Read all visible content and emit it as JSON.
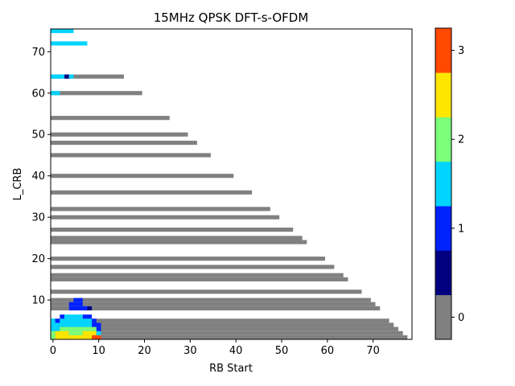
{
  "chart_data": {
    "type": "heatmap",
    "title": "15MHz QPSK DFT-s-OFDM",
    "xlabel": "RB Start",
    "ylabel": "L_CRB",
    "xlim": [
      -0.5,
      78.5
    ],
    "ylim": [
      0.5,
      75.5
    ],
    "x_ticks": [
      0,
      10,
      20,
      30,
      40,
      50,
      60,
      70
    ],
    "y_ticks": [
      10,
      20,
      30,
      40,
      50,
      60,
      70
    ],
    "colorbar": {
      "range": [
        -0.25,
        3.25
      ],
      "ticks": [
        0,
        1,
        2,
        3
      ],
      "colors": [
        "#808080",
        "#000080",
        "#0022ff",
        "#00d4ff",
        "#7cff79",
        "#ffe600",
        "#ff4a00"
      ]
    },
    "gray_rows": [
      {
        "l": 1,
        "start": 0,
        "end": 77
      },
      {
        "l": 2,
        "start": 0,
        "end": 76
      },
      {
        "l": 3,
        "start": 0,
        "end": 75
      },
      {
        "l": 4,
        "start": 0,
        "end": 74
      },
      {
        "l": 5,
        "start": 0,
        "end": 73
      },
      {
        "l": 8,
        "start": 0,
        "end": 71
      },
      {
        "l": 9,
        "start": 0,
        "end": 70
      },
      {
        "l": 10,
        "start": 0,
        "end": 69
      },
      {
        "l": 12,
        "start": 0,
        "end": 67
      },
      {
        "l": 15,
        "start": 0,
        "end": 64
      },
      {
        "l": 16,
        "start": 0,
        "end": 63
      },
      {
        "l": 18,
        "start": 0,
        "end": 61
      },
      {
        "l": 20,
        "start": 0,
        "end": 59
      },
      {
        "l": 24,
        "start": 0,
        "end": 55
      },
      {
        "l": 25,
        "start": 0,
        "end": 54
      },
      {
        "l": 27,
        "start": 0,
        "end": 52
      },
      {
        "l": 30,
        "start": 0,
        "end": 49
      },
      {
        "l": 32,
        "start": 0,
        "end": 47
      },
      {
        "l": 36,
        "start": 0,
        "end": 43
      },
      {
        "l": 40,
        "start": 0,
        "end": 39
      },
      {
        "l": 45,
        "start": 0,
        "end": 34
      },
      {
        "l": 48,
        "start": 0,
        "end": 31
      },
      {
        "l": 50,
        "start": 0,
        "end": 29
      },
      {
        "l": 54,
        "start": 0,
        "end": 25
      },
      {
        "l": 60,
        "start": 0,
        "end": 19
      },
      {
        "l": 64,
        "start": 0,
        "end": 15
      }
    ],
    "colored_cells": [
      {
        "l": 1,
        "start": 0,
        "end": 0,
        "value": 2.0
      },
      {
        "l": 1,
        "start": 1,
        "end": 3,
        "value": 2.5
      },
      {
        "l": 1,
        "start": 4,
        "end": 6,
        "value": 2.5
      },
      {
        "l": 1,
        "start": 7,
        "end": 8,
        "value": 2.5
      },
      {
        "l": 1,
        "start": 9,
        "end": 10,
        "value": 3.0
      },
      {
        "l": 2,
        "start": 0,
        "end": 0,
        "value": 2.0
      },
      {
        "l": 2,
        "start": 1,
        "end": 3,
        "value": 2.5
      },
      {
        "l": 2,
        "start": 4,
        "end": 6,
        "value": 2.0
      },
      {
        "l": 2,
        "start": 7,
        "end": 9,
        "value": 2.5
      },
      {
        "l": 2,
        "start": 10,
        "end": 10,
        "value": 1.5
      },
      {
        "l": 3,
        "start": 0,
        "end": 1,
        "value": 1.5
      },
      {
        "l": 3,
        "start": 2,
        "end": 9,
        "value": 2.0
      },
      {
        "l": 3,
        "start": 10,
        "end": 10,
        "value": 1.0
      },
      {
        "l": 4,
        "start": 0,
        "end": 8,
        "value": 1.5
      },
      {
        "l": 4,
        "start": 9,
        "end": 10,
        "value": 1.0
      },
      {
        "l": 5,
        "start": 0,
        "end": 0,
        "value": 1.5
      },
      {
        "l": 5,
        "start": 1,
        "end": 1,
        "value": 1.0
      },
      {
        "l": 5,
        "start": 2,
        "end": 8,
        "value": 1.5
      },
      {
        "l": 5,
        "start": 9,
        "end": 9,
        "value": 1.0
      },
      {
        "l": 6,
        "start": 2,
        "end": 2,
        "value": 1.0
      },
      {
        "l": 6,
        "start": 3,
        "end": 6,
        "value": 1.5
      },
      {
        "l": 6,
        "start": 7,
        "end": 8,
        "value": 1.0
      },
      {
        "l": 8,
        "start": 4,
        "end": 7,
        "value": 1.0
      },
      {
        "l": 8,
        "start": 8,
        "end": 8,
        "value": 0.5
      },
      {
        "l": 9,
        "start": 4,
        "end": 6,
        "value": 1.0
      },
      {
        "l": 10,
        "start": 5,
        "end": 6,
        "value": 1.0
      },
      {
        "l": 60,
        "start": 0,
        "end": 1,
        "value": 1.5
      },
      {
        "l": 64,
        "start": 0,
        "end": 2,
        "value": 1.5
      },
      {
        "l": 64,
        "start": 3,
        "end": 3,
        "value": 0.5
      },
      {
        "l": 64,
        "start": 4,
        "end": 4,
        "value": 1.5
      },
      {
        "l": 72,
        "start": 0,
        "end": 7,
        "value": 1.5
      },
      {
        "l": 75,
        "start": 0,
        "end": 4,
        "value": 1.5
      }
    ]
  }
}
